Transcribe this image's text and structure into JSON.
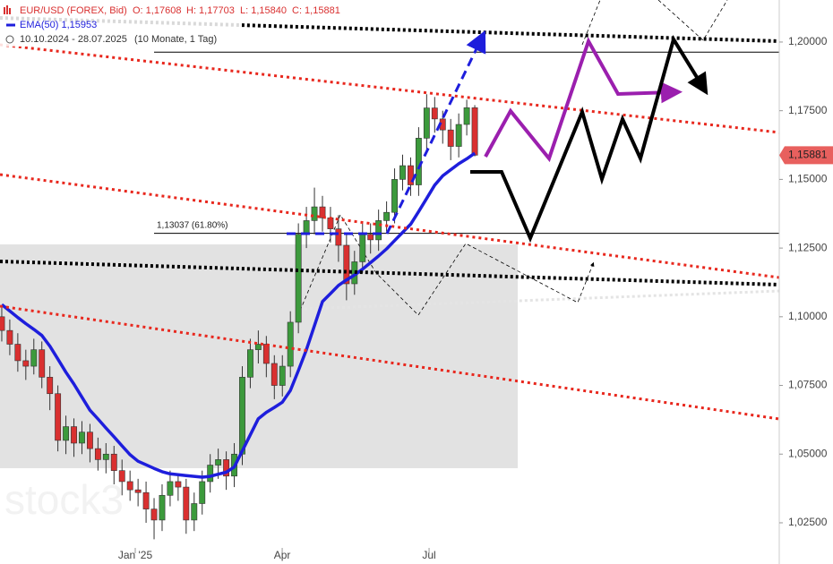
{
  "chart_data": {
    "type": "candlestick",
    "legend": {
      "symbol": "EUR/USD (FOREX, Bid)",
      "ohlc": [
        "O: 1,17608",
        "H: 1,17703",
        "L: 1,15840",
        "C: 1,15881"
      ],
      "ema_label": "EMA(50)  1,15953",
      "range": "10.10.2024 - 28.07.2025",
      "span": "(10 Monate, 1 Tag)"
    },
    "open": [
      1.1,
      1.095,
      1.09,
      1.084,
      1.082,
      1.088,
      1.078,
      1.072,
      1.055,
      1.06,
      1.054,
      1.058,
      1.052,
      1.048,
      1.05,
      1.044,
      1.04,
      1.037,
      1.036,
      1.03,
      1.026,
      1.035,
      1.04,
      1.038,
      1.026,
      1.032,
      1.04,
      1.046,
      1.048,
      1.042,
      1.05,
      1.078,
      1.088,
      1.09,
      1.083,
      1.075,
      1.082,
      1.098,
      1.13,
      1.135,
      1.14,
      1.136,
      1.132,
      1.126,
      1.112,
      1.12,
      1.13,
      1.128,
      1.135,
      1.138,
      1.15,
      1.155,
      1.148,
      1.165,
      1.176,
      1.172,
      1.168,
      1.162,
      1.17,
      1.17608
    ],
    "high": [
      1.104,
      1.099,
      1.094,
      1.088,
      1.092,
      1.091,
      1.082,
      1.075,
      1.064,
      1.063,
      1.062,
      1.061,
      1.056,
      1.054,
      1.053,
      1.048,
      1.044,
      1.041,
      1.04,
      1.034,
      1.039,
      1.044,
      1.043,
      1.041,
      1.036,
      1.044,
      1.05,
      1.052,
      1.051,
      1.054,
      1.082,
      1.092,
      1.095,
      1.093,
      1.086,
      1.086,
      1.102,
      1.134,
      1.14,
      1.147,
      1.144,
      1.14,
      1.137,
      1.13,
      1.124,
      1.134,
      1.134,
      1.139,
      1.142,
      1.154,
      1.159,
      1.158,
      1.169,
      1.181,
      1.18,
      1.175,
      1.172,
      1.174,
      1.179,
      1.17703
    ],
    "low": [
      1.091,
      1.086,
      1.08,
      1.077,
      1.079,
      1.074,
      1.066,
      1.051,
      1.05,
      1.049,
      1.05,
      1.047,
      1.044,
      1.043,
      1.039,
      1.035,
      1.033,
      1.031,
      1.025,
      1.019,
      1.022,
      1.031,
      1.033,
      1.021,
      1.022,
      1.028,
      1.036,
      1.041,
      1.037,
      1.038,
      1.046,
      1.074,
      1.083,
      1.078,
      1.07,
      1.071,
      1.078,
      1.094,
      1.125,
      1.13,
      1.131,
      1.127,
      1.12,
      1.106,
      1.108,
      1.116,
      1.123,
      1.124,
      1.131,
      1.134,
      1.146,
      1.144,
      1.144,
      1.161,
      1.167,
      1.163,
      1.157,
      1.158,
      1.166,
      1.1584
    ],
    "close": [
      1.095,
      1.09,
      1.084,
      1.082,
      1.088,
      1.078,
      1.072,
      1.055,
      1.06,
      1.054,
      1.058,
      1.052,
      1.048,
      1.05,
      1.044,
      1.04,
      1.037,
      1.036,
      1.03,
      1.026,
      1.035,
      1.04,
      1.038,
      1.026,
      1.032,
      1.04,
      1.046,
      1.048,
      1.042,
      1.05,
      1.078,
      1.088,
      1.09,
      1.083,
      1.075,
      1.082,
      1.098,
      1.13,
      1.135,
      1.14,
      1.136,
      1.132,
      1.126,
      1.112,
      1.12,
      1.13,
      1.128,
      1.135,
      1.138,
      1.15,
      1.155,
      1.148,
      1.165,
      1.176,
      1.172,
      1.168,
      1.162,
      1.17,
      1.17608,
      1.15881
    ],
    "up_color": "#3c9a3c",
    "down_color": "#d93030",
    "ema": {
      "name": "EMA(50)",
      "color": "#1e1edc",
      "values": [
        1.1044,
        1.1021,
        1.0997,
        1.0975,
        1.0954,
        1.0932,
        1.0893,
        1.0846,
        1.0798,
        1.0755,
        1.0707,
        1.066,
        1.0628,
        1.0595,
        1.0563,
        1.053,
        1.0498,
        1.0474,
        1.0461,
        1.0448,
        1.0436,
        1.0428,
        1.0425,
        1.0422,
        1.0419,
        1.0416,
        1.0419,
        1.0427,
        1.0434,
        1.0453,
        1.0512,
        1.057,
        1.0629,
        1.0652,
        1.067,
        1.0689,
        1.0732,
        1.0804,
        1.088,
        1.0967,
        1.1055,
        1.1084,
        1.1114,
        1.1134,
        1.1152,
        1.1173,
        1.1197,
        1.1221,
        1.1247,
        1.1277,
        1.1307,
        1.1337,
        1.1383,
        1.1431,
        1.1479,
        1.1513,
        1.1535,
        1.1557,
        1.1575,
        1.15953
      ]
    },
    "ylim": [
      1.01,
      1.2153
    ],
    "yticks": [
      {
        "value": 1.025,
        "label": "1,02500"
      },
      {
        "value": 1.05,
        "label": "1,05000"
      },
      {
        "value": 1.075,
        "label": "1,07500"
      },
      {
        "value": 1.1,
        "label": "1,10000"
      },
      {
        "value": 1.125,
        "label": "1,12500"
      },
      {
        "value": 1.15,
        "label": "1,15000"
      },
      {
        "value": 1.175,
        "label": "1,17500"
      },
      {
        "value": 1.2,
        "label": "1,20000"
      }
    ],
    "xlim": [
      -0.22,
      96.98
    ],
    "xticks": [
      {
        "value": 16.65,
        "label": "Jan '25"
      },
      {
        "value": 34.98,
        "label": "Apr"
      },
      {
        "value": 53.3,
        "label": "Jul"
      }
    ],
    "fib_levels": [
      {
        "value": 1.13037,
        "label": "1,13037 (61.80%)"
      },
      {
        "value": 1.1963
      }
    ],
    "last_price": {
      "value": 1.15881,
      "label": "1,15881",
      "color": "#e8605e"
    },
    "watermark": "stock3"
  }
}
